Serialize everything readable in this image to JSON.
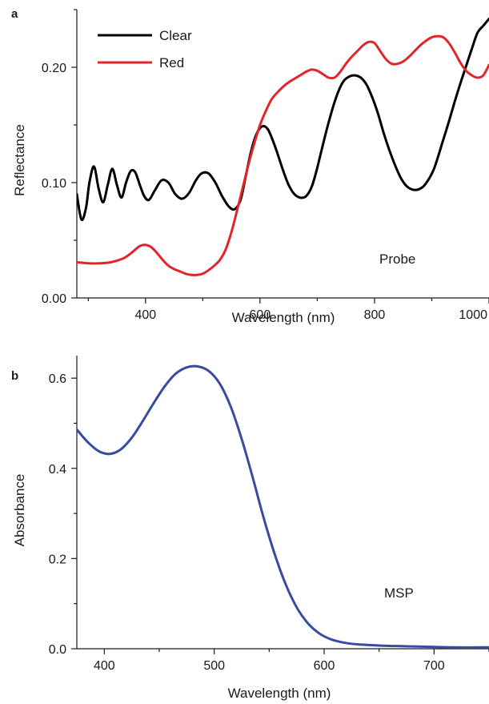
{
  "chart_data": [
    {
      "panel": "a",
      "type": "line",
      "xlabel": "Wavelength (nm)",
      "ylabel": "Reflectance",
      "xlim": [
        280,
        1000
      ],
      "ylim": [
        0,
        0.25
      ],
      "xticks": [
        400,
        600,
        800,
        1000
      ],
      "yticks": [
        0.0,
        0.1,
        0.2
      ],
      "ytick_labels": [
        "0.00",
        "0.10",
        "0.20"
      ],
      "grid": false,
      "legend_position": "top-left",
      "annotation": "Probe",
      "series": [
        {
          "name": "Clear",
          "color": "#000000",
          "x": [
            280,
            288,
            296,
            302,
            310,
            318,
            326,
            334,
            342,
            350,
            358,
            366,
            374,
            382,
            390,
            398,
            406,
            416,
            428,
            440,
            452,
            464,
            476,
            488,
            498,
            510,
            522,
            534,
            546,
            556,
            566,
            574,
            582,
            590,
            598,
            606,
            614,
            622,
            630,
            640,
            650,
            660,
            670,
            680,
            690,
            698,
            706,
            716,
            726,
            736,
            746,
            756,
            766,
            776,
            786,
            796,
            806,
            816,
            826,
            836,
            846,
            856,
            866,
            876,
            886,
            896,
            904,
            912,
            920,
            930,
            940,
            950,
            960,
            970,
            980,
            990,
            1000
          ],
          "y": [
            0.09,
            0.068,
            0.078,
            0.1,
            0.114,
            0.095,
            0.083,
            0.098,
            0.112,
            0.098,
            0.087,
            0.1,
            0.11,
            0.109,
            0.098,
            0.088,
            0.085,
            0.093,
            0.102,
            0.1,
            0.09,
            0.086,
            0.091,
            0.102,
            0.108,
            0.108,
            0.1,
            0.088,
            0.079,
            0.077,
            0.085,
            0.103,
            0.122,
            0.137,
            0.146,
            0.149,
            0.146,
            0.137,
            0.126,
            0.111,
            0.098,
            0.09,
            0.087,
            0.088,
            0.096,
            0.109,
            0.125,
            0.145,
            0.163,
            0.178,
            0.188,
            0.192,
            0.193,
            0.191,
            0.185,
            0.174,
            0.16,
            0.143,
            0.128,
            0.115,
            0.104,
            0.097,
            0.094,
            0.094,
            0.097,
            0.104,
            0.112,
            0.124,
            0.137,
            0.153,
            0.17,
            0.186,
            0.201,
            0.216,
            0.23,
            0.236,
            0.242
          ]
        },
        {
          "name": "Red",
          "color": "#e0262a",
          "x": [
            280,
            300,
            320,
            340,
            360,
            370,
            380,
            390,
            400,
            410,
            420,
            430,
            440,
            450,
            460,
            470,
            480,
            490,
            500,
            510,
            520,
            530,
            540,
            550,
            560,
            570,
            580,
            590,
            600,
            610,
            620,
            630,
            640,
            650,
            660,
            670,
            680,
            690,
            700,
            710,
            720,
            730,
            740,
            750,
            760,
            770,
            780,
            790,
            800,
            810,
            820,
            830,
            840,
            850,
            860,
            870,
            880,
            890,
            900,
            910,
            920,
            930,
            940,
            950,
            960,
            970,
            980,
            990,
            1000
          ],
          "y": [
            0.031,
            0.03,
            0.03,
            0.031,
            0.034,
            0.037,
            0.041,
            0.045,
            0.046,
            0.044,
            0.039,
            0.033,
            0.028,
            0.025,
            0.023,
            0.021,
            0.02,
            0.02,
            0.021,
            0.024,
            0.028,
            0.033,
            0.042,
            0.057,
            0.076,
            0.096,
            0.116,
            0.134,
            0.15,
            0.162,
            0.172,
            0.178,
            0.183,
            0.187,
            0.19,
            0.193,
            0.196,
            0.198,
            0.197,
            0.194,
            0.191,
            0.191,
            0.196,
            0.203,
            0.209,
            0.214,
            0.219,
            0.222,
            0.221,
            0.214,
            0.207,
            0.203,
            0.203,
            0.205,
            0.209,
            0.214,
            0.219,
            0.223,
            0.226,
            0.227,
            0.226,
            0.221,
            0.213,
            0.204,
            0.197,
            0.193,
            0.191,
            0.193,
            0.202
          ]
        }
      ]
    },
    {
      "panel": "b",
      "type": "line",
      "xlabel": "Wavelength (nm)",
      "ylabel": "Absorbance",
      "xlim": [
        375,
        750
      ],
      "ylim": [
        0,
        0.65
      ],
      "xticks": [
        400,
        500,
        600,
        700
      ],
      "yticks": [
        0.0,
        0.2,
        0.4,
        0.6
      ],
      "ytick_labels": [
        "0.0",
        "0.2",
        "0.4",
        "0.6"
      ],
      "grid": false,
      "annotation": "MSP",
      "series": [
        {
          "color": "#3a4aa0",
          "x": [
            375,
            385,
            395,
            405,
            415,
            425,
            435,
            445,
            455,
            465,
            475,
            485,
            495,
            505,
            515,
            525,
            535,
            545,
            555,
            565,
            575,
            585,
            595,
            605,
            615,
            625,
            635,
            650,
            665,
            680,
            700,
            720,
            740,
            750
          ],
          "y": [
            0.486,
            0.458,
            0.438,
            0.432,
            0.442,
            0.468,
            0.505,
            0.545,
            0.582,
            0.61,
            0.624,
            0.626,
            0.616,
            0.588,
            0.537,
            0.465,
            0.38,
            0.29,
            0.21,
            0.143,
            0.092,
            0.057,
            0.035,
            0.022,
            0.015,
            0.011,
            0.009,
            0.007,
            0.006,
            0.005,
            0.004,
            0.003,
            0.003,
            0.003
          ]
        }
      ]
    }
  ]
}
